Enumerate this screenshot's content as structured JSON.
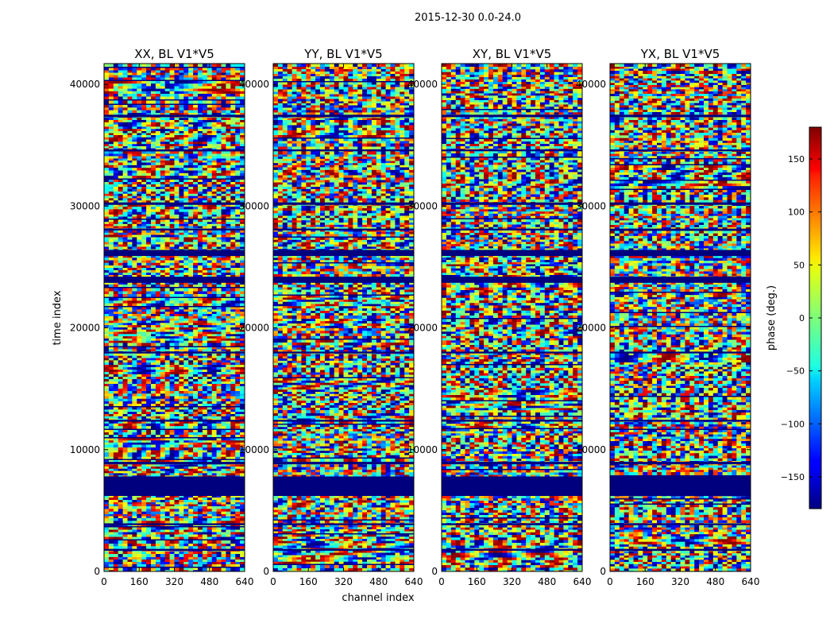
{
  "chart_data": {
    "type": "heatmap",
    "suptitle": "2015-12-30 0.0-24.0",
    "xlabel": "channel index",
    "ylabel": "time index",
    "xlim": [
      0,
      640
    ],
    "ylim": [
      0,
      41700
    ],
    "xticks": [
      0,
      160,
      320,
      480,
      640
    ],
    "yticks": [
      0,
      10000,
      20000,
      30000,
      40000
    ],
    "panels": [
      {
        "title": "XX, BL V1*V5",
        "polarization": "XX"
      },
      {
        "title": "YY, BL V1*V5",
        "polarization": "YY"
      },
      {
        "title": "XY, BL V1*V5",
        "polarization": "XY"
      },
      {
        "title": "YX, BL V1*V5",
        "polarization": "YX"
      }
    ],
    "colorbar": {
      "label": "phase (deg.)",
      "colormap": "jet",
      "range": [
        -180,
        180
      ],
      "ticks": [
        -150,
        -100,
        -50,
        0,
        50,
        100,
        150
      ],
      "tick_labels": [
        "−150",
        "−100",
        "−50",
        "0",
        "50",
        "100",
        "150"
      ]
    },
    "flagged_time_ranges": [
      [
        6200,
        7800
      ],
      [
        23700,
        24200
      ],
      [
        25900,
        26400
      ],
      [
        30100,
        30300
      ],
      [
        37300,
        37500
      ],
      [
        8800,
        9000
      ],
      [
        1700,
        1850
      ],
      [
        3800,
        3950
      ],
      [
        12300,
        12450
      ],
      [
        17900,
        18050
      ],
      [
        28000,
        28150
      ],
      [
        34500,
        34650
      ]
    ]
  }
}
